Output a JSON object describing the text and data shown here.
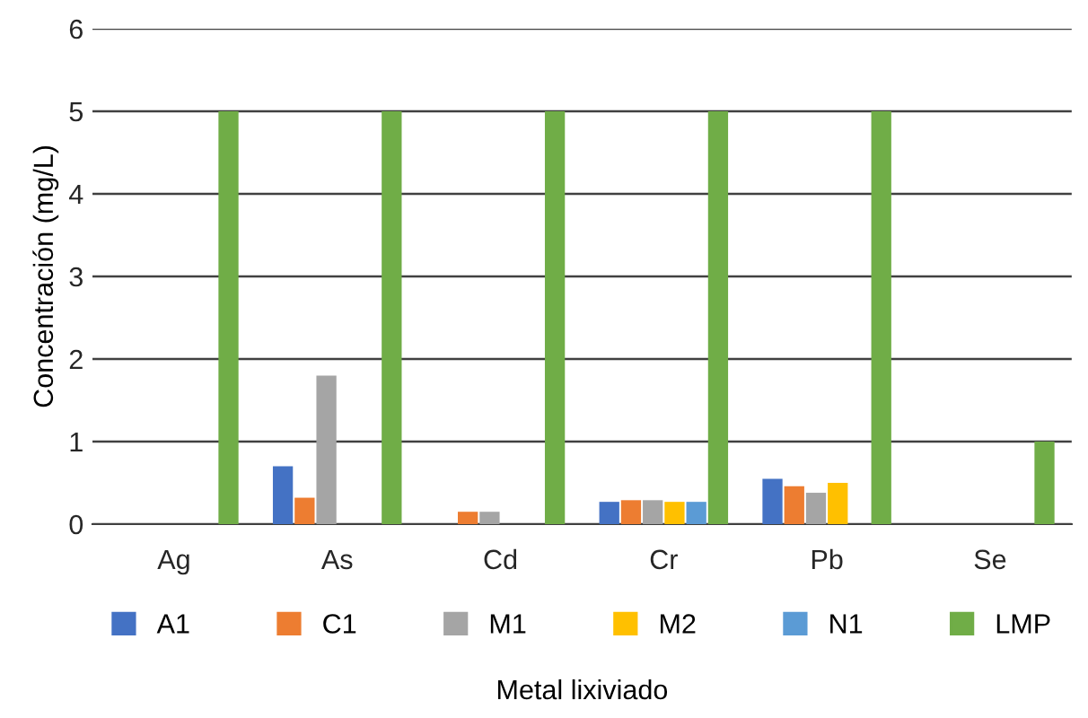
{
  "chart_data": {
    "type": "bar",
    "xlabel": "Metal lixiviado",
    "ylabel": "Concentración (mg/L)",
    "categories": [
      "Ag",
      "As",
      "Cd",
      "Cr",
      "Pb",
      "Se"
    ],
    "series": [
      {
        "name": "A1",
        "color": "#4472c4",
        "values": [
          0,
          0.7,
          0,
          0.27,
          0.55,
          0
        ]
      },
      {
        "name": "C1",
        "color": "#ed7d31",
        "values": [
          0,
          0.32,
          0.15,
          0.29,
          0.46,
          0
        ]
      },
      {
        "name": "M1",
        "color": "#a5a5a5",
        "values": [
          0,
          1.8,
          0.15,
          0.29,
          0.38,
          0
        ]
      },
      {
        "name": "M2",
        "color": "#ffc000",
        "values": [
          0,
          0,
          0,
          0.27,
          0.5,
          0
        ]
      },
      {
        "name": "N1",
        "color": "#5b9bd5",
        "values": [
          0,
          0,
          0,
          0.27,
          0,
          0
        ]
      },
      {
        "name": "LMP",
        "color": "#70ad47",
        "values": [
          5,
          5,
          5,
          5,
          5,
          1
        ]
      }
    ],
    "ylim": [
      0,
      6
    ],
    "yticks": [
      0,
      1,
      2,
      3,
      4,
      5,
      6
    ],
    "grid": "y",
    "legend": "bottom"
  }
}
